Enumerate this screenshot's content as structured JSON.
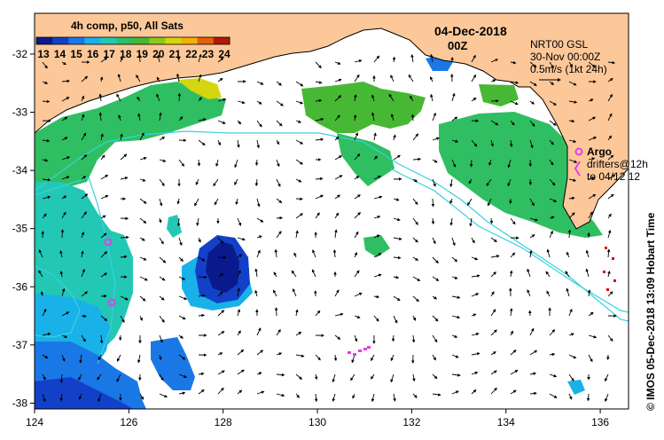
{
  "header": {
    "date": "04-Dec-2018",
    "time": "00Z",
    "composite_label": "4h comp, p50, All Sats"
  },
  "colorbar": {
    "ticks": [
      "13",
      "14",
      "15",
      "16",
      "17",
      "18",
      "19",
      "20",
      "21",
      "22",
      "23",
      "24"
    ],
    "colors": [
      "#0a1a8c",
      "#1340c8",
      "#1a78e6",
      "#19b2e8",
      "#22c8b4",
      "#2fbf62",
      "#47b833",
      "#8cc81e",
      "#d4d60f",
      "#f0b10c",
      "#e1620a",
      "#b11a06"
    ]
  },
  "legend": {
    "current_source": "NRT00 GSL",
    "current_time": "30-Nov 00:00Z",
    "current_scale": "0.5m/s (1kt 24h)",
    "argo_label": "Argo",
    "drifters_label": "drifters@12h",
    "drifters_range": "to 04/12 12"
  },
  "axes": {
    "x_ticks": [
      "124",
      "126",
      "128",
      "130",
      "132",
      "134",
      "136"
    ],
    "y_ticks": [
      "-32",
      "-33",
      "-34",
      "-35",
      "-36",
      "-37",
      "-38"
    ],
    "x_range": [
      124,
      136.6
    ],
    "y_range": [
      -38.1,
      -31.3
    ]
  },
  "credit": "© IMOS 05-Dec-2018 13:09 Hobart Time",
  "colors": {
    "land": "#fcc89a",
    "coast": "#000000",
    "contour": "#38d0e0",
    "argo": "#e040e0",
    "arrow": "#000000"
  }
}
